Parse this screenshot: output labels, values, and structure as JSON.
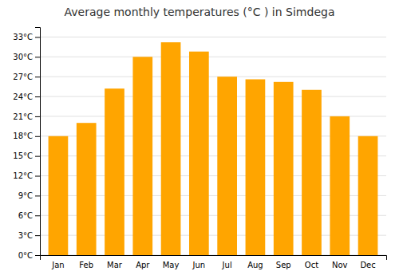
{
  "chart_data": {
    "type": "bar",
    "title": "Average monthly temperatures (°C ) in Simdega",
    "categories": [
      "Jan",
      "Feb",
      "Mar",
      "Apr",
      "May",
      "Jun",
      "Jul",
      "Aug",
      "Sep",
      "Oct",
      "Nov",
      "Dec"
    ],
    "values": [
      18.0,
      20.0,
      25.2,
      30.0,
      32.2,
      30.8,
      27.0,
      26.6,
      26.2,
      25.0,
      21.0,
      18.0
    ],
    "color": "#FFA500",
    "ylim": [
      0,
      34.5
    ],
    "yticks": [
      {
        "value": 0,
        "label": "0°C"
      },
      {
        "value": 3,
        "label": "3°C"
      },
      {
        "value": 6,
        "label": "6°C"
      },
      {
        "value": 9,
        "label": "9°C"
      },
      {
        "value": 12,
        "label": "12°C"
      },
      {
        "value": 15,
        "label": "15°C"
      },
      {
        "value": 18,
        "label": "18°C"
      },
      {
        "value": 21,
        "label": "21°C"
      },
      {
        "value": 24,
        "label": "24°C"
      },
      {
        "value": 27,
        "label": "27°C"
      },
      {
        "value": 30,
        "label": "30°C"
      },
      {
        "value": 33,
        "label": "33°C"
      }
    ],
    "grid": true
  }
}
